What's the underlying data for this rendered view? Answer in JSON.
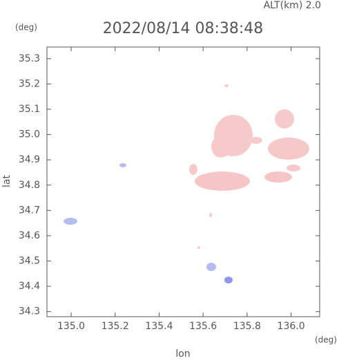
{
  "chart_data": {
    "type": "radar-map",
    "title": "2022/08/14 08:38:48",
    "subtitle": "ALT(km) 2.0",
    "x_label": "lon",
    "y_label": "lat",
    "x_unit": "(deg)",
    "y_unit": "(deg)",
    "xlim": [
      134.89,
      136.13
    ],
    "ylim": [
      34.28,
      35.346
    ],
    "xticks": [
      {
        "value": 135,
        "label": "135.0"
      },
      135.2,
      135.4,
      135.6,
      135.8,
      {
        "value": 136,
        "label": "136.0"
      }
    ],
    "yticks": [
      34.3,
      34.4,
      34.5,
      34.6,
      34.7,
      34.8,
      34.9,
      {
        "value": 35,
        "label": "35.0"
      },
      35.1,
      35.2,
      35.3
    ]
  }
}
